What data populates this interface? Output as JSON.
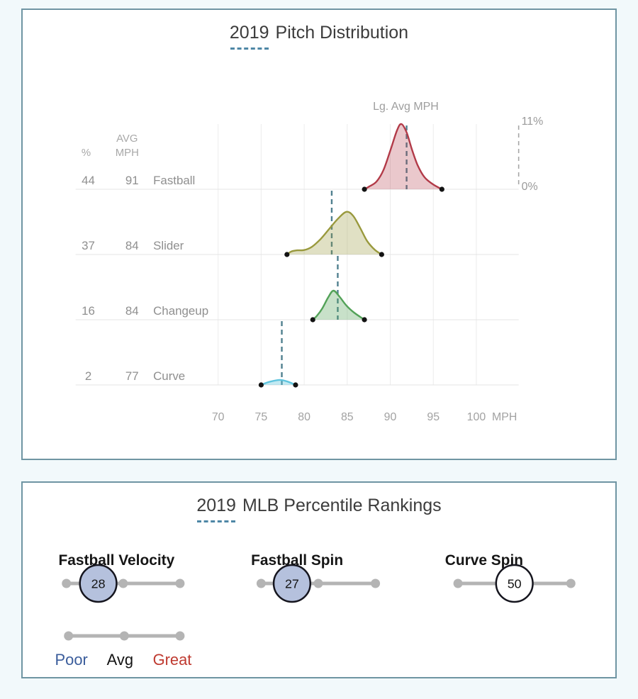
{
  "page": {
    "background": "#f2f9fb",
    "card_border": "#6f95a3",
    "title_dash_color": "#4e87a6"
  },
  "chart_data": [
    {
      "type": "area",
      "title": "2019 Pitch Distribution",
      "title_year": "2019",
      "title_rest": "Pitch Distribution",
      "xlabel": "MPH",
      "x_ticks": [
        "70",
        "75",
        "80",
        "85",
        "90",
        "95",
        "100"
      ],
      "x_tick_values": [
        70,
        75,
        80,
        85,
        90,
        95,
        100
      ],
      "xlim": [
        70,
        100
      ],
      "ylim": [
        0,
        11
      ],
      "y_axis_labels": {
        "top": "11%",
        "bottom": "0%"
      },
      "lg_avg_label": "Lg. Avg MPH",
      "columns": {
        "pct": "%",
        "avg_line1": "AVG",
        "avg_line2": "MPH"
      },
      "grid": true,
      "pitches": [
        {
          "name": "Fastball",
          "usage_pct": "44",
          "avg_mph": "91",
          "lg_avg_mph": 91.9,
          "stroke": "#b23a48",
          "fill": "rgba(178,58,72,0.28)",
          "density": [
            [
              87,
              0
            ],
            [
              87.6,
              0.5
            ],
            [
              88.4,
              1.3
            ],
            [
              89.2,
              3.2
            ],
            [
              90.0,
              6.5
            ],
            [
              90.8,
              10.0
            ],
            [
              91.3,
              11.0
            ],
            [
              91.9,
              9.6
            ],
            [
              92.5,
              6.8
            ],
            [
              93.2,
              4.0
            ],
            [
              94.0,
              2.0
            ],
            [
              95.0,
              0.8
            ],
            [
              96,
              0
            ]
          ]
        },
        {
          "name": "Slider",
          "usage_pct": "37",
          "avg_mph": "84",
          "lg_avg_mph": 83.2,
          "stroke": "#99993d",
          "fill": "rgba(153,153,61,0.30)",
          "density": [
            [
              78,
              0
            ],
            [
              78.5,
              0.5
            ],
            [
              79.2,
              0.7
            ],
            [
              80.0,
              0.75
            ],
            [
              80.9,
              1.3
            ],
            [
              81.9,
              2.6
            ],
            [
              82.9,
              4.3
            ],
            [
              83.9,
              6.0
            ],
            [
              84.9,
              7.2
            ],
            [
              85.7,
              6.5
            ],
            [
              86.5,
              4.5
            ],
            [
              87.3,
              2.3
            ],
            [
              88.2,
              0.8
            ],
            [
              89,
              0
            ]
          ]
        },
        {
          "name": "Changeup",
          "usage_pct": "16",
          "avg_mph": "84",
          "lg_avg_mph": 83.9,
          "stroke": "#53a258",
          "fill": "rgba(83,162,88,0.32)",
          "density": [
            [
              81,
              0
            ],
            [
              81.5,
              0.7
            ],
            [
              82.1,
              1.9
            ],
            [
              82.8,
              3.8
            ],
            [
              83.4,
              4.9
            ],
            [
              84.1,
              3.9
            ],
            [
              84.9,
              2.4
            ],
            [
              85.8,
              1.2
            ],
            [
              87,
              0
            ]
          ]
        },
        {
          "name": "Curve",
          "usage_pct": "2",
          "avg_mph": "77",
          "lg_avg_mph": 77.4,
          "stroke": "#5ec4de",
          "fill": "rgba(94,196,222,0.38)",
          "density": [
            [
              75,
              0
            ],
            [
              75.9,
              0.5
            ],
            [
              77.2,
              0.85
            ],
            [
              78.2,
              0.5
            ],
            [
              79,
              0
            ]
          ]
        }
      ],
      "lg_avg_line_color": "#50808f",
      "endpoint_dot_color": "#131313"
    },
    {
      "type": "slider",
      "title": "2019 MLB Percentile Rankings",
      "title_year": "2019",
      "title_rest": "MLB Percentile Rankings",
      "scale": {
        "min": 0,
        "max": 100
      },
      "track_color": "#b4b4b4",
      "circle_border_color": "#15151e",
      "sliders": [
        {
          "label": "Fastball Velocity",
          "value": 28,
          "fill": "#b5c1dd"
        },
        {
          "label": "Fastball Spin",
          "value": 27,
          "fill": "#b5c1dd"
        },
        {
          "label": "Curve Spin",
          "value": 50,
          "fill": "#ffffff"
        }
      ],
      "legend": {
        "items": [
          {
            "label": "Poor",
            "color": "#3a5c9b"
          },
          {
            "label": "Avg",
            "color": "#141414"
          },
          {
            "label": "Great",
            "color": "#bf3a30"
          }
        ]
      }
    }
  ]
}
